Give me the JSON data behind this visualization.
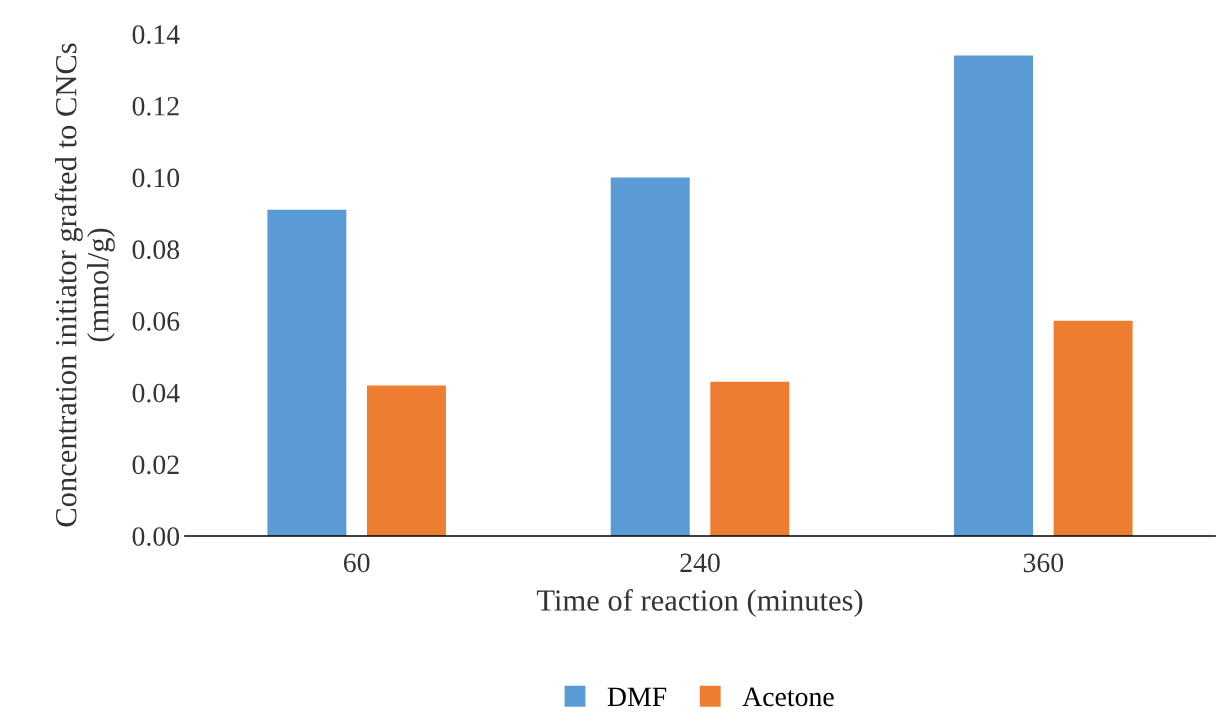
{
  "chart_data": {
    "type": "bar",
    "xlabel": "Time of reaction (minutes)",
    "ylabel": "Concentration initiator grafted to CNCs\n(mmol/g)",
    "categories": [
      "60",
      "240",
      "360"
    ],
    "series": [
      {
        "name": "DMF",
        "color": "#5b9bd5",
        "values": [
          0.091,
          0.1,
          0.134
        ]
      },
      {
        "name": "Acetone",
        "color": "#ed7d31",
        "values": [
          0.042,
          0.043,
          0.06
        ]
      }
    ],
    "ylim": [
      0,
      0.14
    ],
    "yticks": [
      {
        "value": 0,
        "label": "0.00"
      },
      {
        "value": 0.02,
        "label": "0.02"
      },
      {
        "value": 0.04,
        "label": "0.04"
      },
      {
        "value": 0.06,
        "label": "0.06"
      },
      {
        "value": 0.08,
        "label": "0.08"
      },
      {
        "value": 0.1,
        "label": "0.10"
      },
      {
        "value": 0.12,
        "label": "0.12"
      },
      {
        "value": 0.14,
        "label": "0.14"
      }
    ],
    "grid": false,
    "legend": "bottom"
  }
}
